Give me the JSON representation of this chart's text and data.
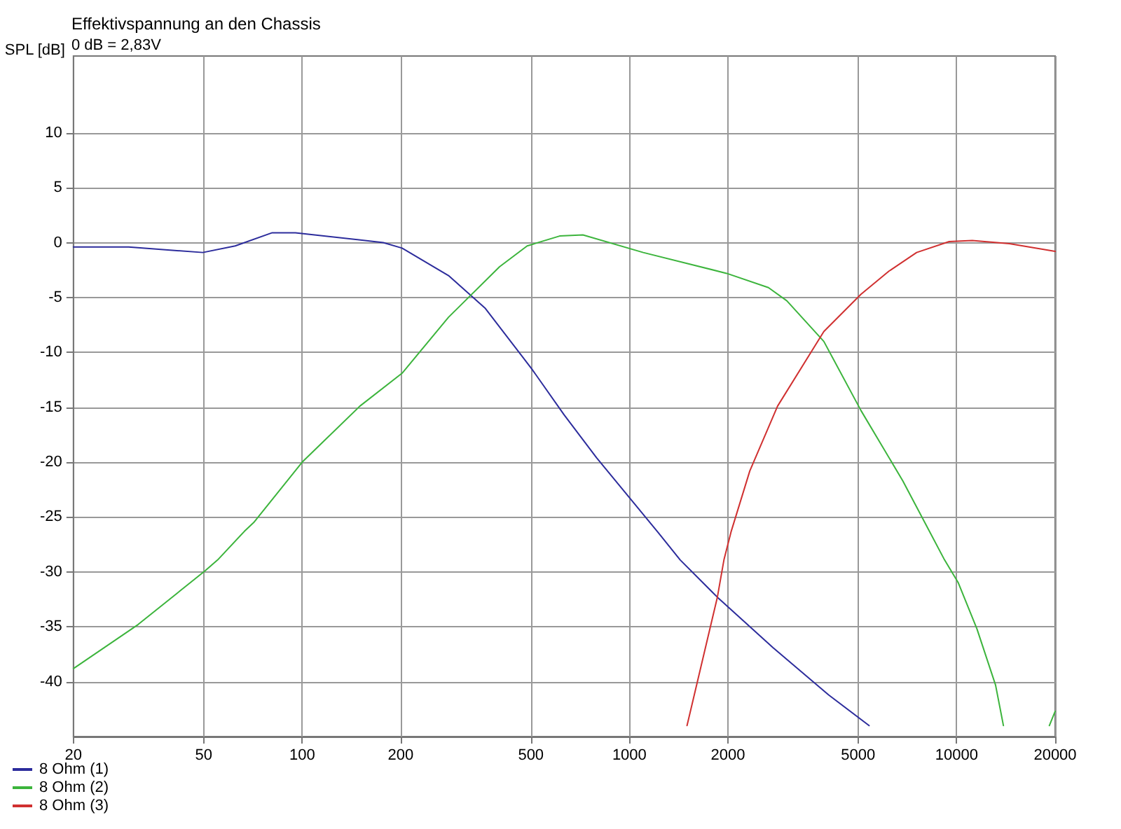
{
  "chart_data": {
    "type": "line",
    "title": "Effektivspannung an den Chassis",
    "subtitle": "0 dB = 2,83V",
    "ylabel": "SPL [dB]",
    "log": "x",
    "xlim": [
      20,
      20000
    ],
    "xticks": [
      20,
      50,
      100,
      200,
      500,
      1000,
      2000,
      5000,
      10000,
      20000
    ],
    "ylim": [
      -45,
      17
    ],
    "yticks": [
      10,
      5,
      0,
      -5,
      -10,
      -15,
      -20,
      -25,
      -30,
      -35,
      -40
    ],
    "grid": true,
    "legend": "bottom left",
    "marker": "none",
    "line_style": "solid",
    "series": [
      {
        "name": "8 Ohm (1)",
        "color": "#2c2c9c",
        "x": [
          20,
          29.5,
          49.7,
          62.4,
          81,
          95.4,
          177,
          202,
          280,
          363,
          503,
          632,
          794,
          1216,
          1429,
          1857,
          2747,
          4063,
          5400
        ],
        "values": [
          -0.4,
          -0.4,
          -0.9,
          -0.3,
          0.9,
          0.9,
          0,
          -0.5,
          -3,
          -6,
          -11.5,
          -15.7,
          -19.6,
          -26.3,
          -28.9,
          -32.3,
          -36.9,
          -41.2,
          -44
        ]
      },
      {
        "name": "8 Ohm (2)",
        "color": "#3cb43c",
        "x": [
          20,
          31.5,
          50.5,
          55.2,
          66.6,
          71.1,
          100,
          150,
          202,
          280,
          401,
          487,
          612,
          721,
          1102,
          1982,
          2660,
          3028,
          3928,
          5102,
          6846,
          9183,
          10122,
          11540,
          13150,
          13900,
          16000,
          19200,
          20000
        ],
        "values": [
          -38.8,
          -34.8,
          -29.9,
          -28.9,
          -26.3,
          -25.5,
          -20,
          -14.9,
          -11.9,
          -6.8,
          -2.2,
          -0.3,
          0.6,
          0.7,
          -0.9,
          -2.8,
          -4.1,
          -5.3,
          -9,
          -15.3,
          -21.7,
          -28.9,
          -31,
          -35.2,
          -40.3,
          -44,
          null,
          -44,
          -42.7
        ]
      },
      {
        "name": "8 Ohm (3)",
        "color": "#d03030",
        "x": [
          1500,
          1857,
          1945,
          2047,
          2333,
          2836,
          3928,
          5102,
          6210,
          7546,
          9490,
          11160,
          14500,
          20000
        ],
        "values": [
          -44,
          -32.3,
          -28.9,
          -26.3,
          -20.8,
          -14.9,
          -8.1,
          -4.7,
          -2.6,
          -0.9,
          0.1,
          0.2,
          -0.1,
          -0.8
        ]
      }
    ]
  }
}
